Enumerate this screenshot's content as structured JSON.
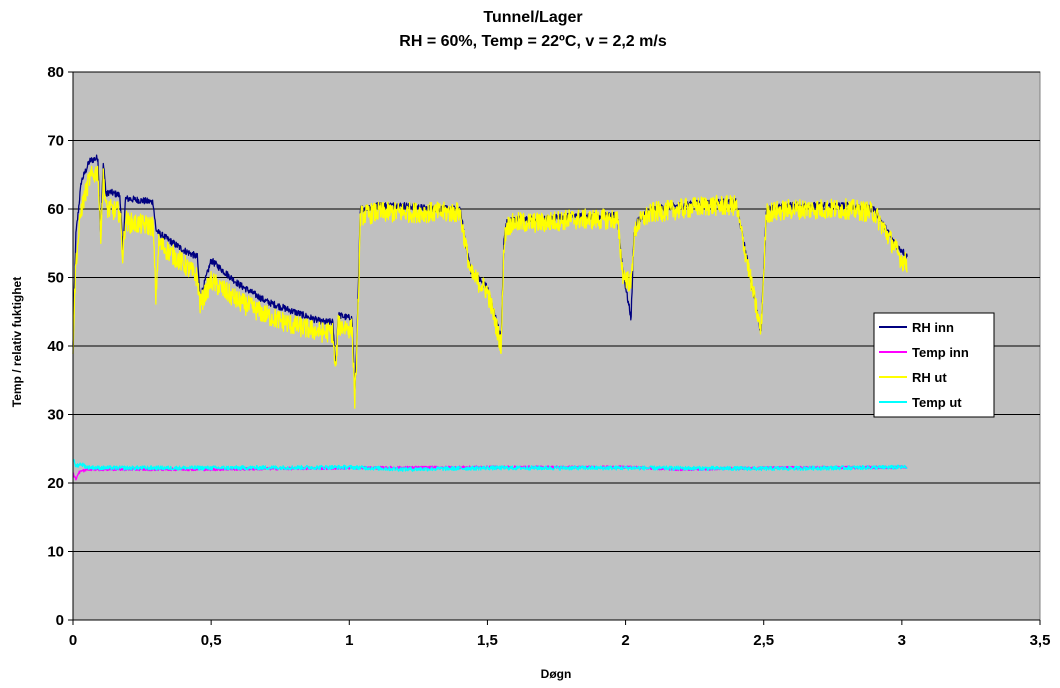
{
  "chart_data": {
    "type": "line",
    "title": "Tunnel/Lager",
    "subtitle": "RH = 60%, Temp = 22ºC, v = 2,2 m/s",
    "xlabel": "Døgn",
    "ylabel": "Temp / relativ fuktighet",
    "xlim": [
      0,
      3.5
    ],
    "ylim": [
      0,
      80
    ],
    "x_ticks": [
      0,
      0.5,
      1,
      1.5,
      2,
      2.5,
      3,
      3.5
    ],
    "x_tick_labels": [
      "0",
      "0,5",
      "1",
      "1,5",
      "2",
      "2,5",
      "3",
      "3,5"
    ],
    "y_ticks": [
      0,
      10,
      20,
      30,
      40,
      50,
      60,
      70,
      80
    ],
    "y_tick_labels": [
      "0",
      "10",
      "20",
      "30",
      "40",
      "50",
      "60",
      "70",
      "80"
    ],
    "grid": "horizontal",
    "plot_background": "#c0c0c0",
    "legend_position": "right",
    "series": [
      {
        "name": "RH inn",
        "color": "#000080",
        "noise": 0.5,
        "x": [
          0,
          0.01,
          0.03,
          0.06,
          0.09,
          0.1,
          0.11,
          0.12,
          0.13,
          0.17,
          0.18,
          0.19,
          0.2,
          0.29,
          0.3,
          0.31,
          0.4,
          0.45,
          0.46,
          0.5,
          0.6,
          0.7,
          0.8,
          0.9,
          0.94,
          0.95,
          0.96,
          1.01,
          1.02,
          1.03,
          1.04,
          1.1,
          1.2,
          1.3,
          1.4,
          1.44,
          1.5,
          1.55,
          1.56,
          1.57,
          1.6,
          1.7,
          1.8,
          1.9,
          1.97,
          1.99,
          2.02,
          2.03,
          2.04,
          2.06,
          2.1,
          2.2,
          2.3,
          2.4,
          2.49,
          2.51,
          2.52,
          2.6,
          2.7,
          2.8,
          2.9,
          2.98,
          3.0,
          3.02
        ],
        "y": [
          40,
          56,
          64,
          67,
          67.5,
          56,
          67,
          62,
          62.5,
          62,
          54,
          61.5,
          61.5,
          61,
          57,
          56.5,
          54,
          53,
          47,
          52.5,
          49,
          46.5,
          45,
          43.5,
          43.5,
          37,
          44.5,
          44,
          33,
          44,
          60,
          60.5,
          60.5,
          60,
          60,
          51,
          48.5,
          41,
          56,
          58,
          58.5,
          58.5,
          59,
          59,
          59,
          51,
          44,
          56,
          58,
          59,
          60,
          60.5,
          61,
          61,
          42,
          60,
          60,
          60.5,
          60.5,
          60.5,
          60,
          54.5,
          54,
          53
        ]
      },
      {
        "name": "Temp inn",
        "color": "#ff00ff",
        "noise": 0.2,
        "x": [
          0,
          0.01,
          0.02,
          0.05,
          0.1,
          0.5,
          1,
          1.5,
          2,
          2.2,
          2.5,
          3,
          3.02
        ],
        "y": [
          21.5,
          20.5,
          21.5,
          22,
          22,
          22,
          22.2,
          22.3,
          22.3,
          22,
          22.2,
          22.3,
          22.3
        ]
      },
      {
        "name": "RH ut",
        "color": "#ffff00",
        "noise": 1.5,
        "x": [
          0,
          0.01,
          0.03,
          0.06,
          0.09,
          0.1,
          0.11,
          0.12,
          0.13,
          0.17,
          0.18,
          0.19,
          0.2,
          0.29,
          0.3,
          0.31,
          0.4,
          0.45,
          0.46,
          0.5,
          0.6,
          0.7,
          0.8,
          0.9,
          0.94,
          0.95,
          0.96,
          1.01,
          1.02,
          1.03,
          1.04,
          1.1,
          1.2,
          1.3,
          1.4,
          1.44,
          1.5,
          1.55,
          1.56,
          1.57,
          1.6,
          1.7,
          1.8,
          1.9,
          1.97,
          1.99,
          2.02,
          2.03,
          2.04,
          2.06,
          2.1,
          2.2,
          2.3,
          2.4,
          2.49,
          2.51,
          2.52,
          2.6,
          2.7,
          2.8,
          2.9,
          2.98,
          3.0,
          3.02
        ],
        "y": [
          40,
          52,
          60,
          64.5,
          65.5,
          56,
          65,
          60,
          60,
          59.5,
          53,
          58.5,
          58,
          57.5,
          47,
          55,
          52,
          50,
          46,
          49.5,
          46.5,
          44.5,
          43,
          42,
          42,
          36,
          43,
          42.5,
          32,
          42,
          59,
          59.5,
          59.5,
          59.5,
          59.5,
          50.5,
          48,
          40,
          55,
          57.5,
          58,
          58,
          58.5,
          58.5,
          58.5,
          50.5,
          49,
          55.5,
          57.5,
          58.5,
          59.5,
          60,
          60.5,
          60.5,
          42,
          59.5,
          59.5,
          60,
          60,
          60,
          59.5,
          54,
          52.5,
          52
        ]
      },
      {
        "name": "Temp ut",
        "color": "#00ffff",
        "noise": 0.3,
        "x": [
          0,
          0.01,
          0.03,
          0.05,
          0.1,
          0.5,
          1,
          1.2,
          1.5,
          2,
          2.5,
          3,
          3.02
        ],
        "y": [
          23.5,
          22.5,
          22.8,
          22.3,
          22.2,
          22.2,
          22.3,
          22,
          22.2,
          22.2,
          22.1,
          22.3,
          22.3
        ]
      }
    ]
  }
}
